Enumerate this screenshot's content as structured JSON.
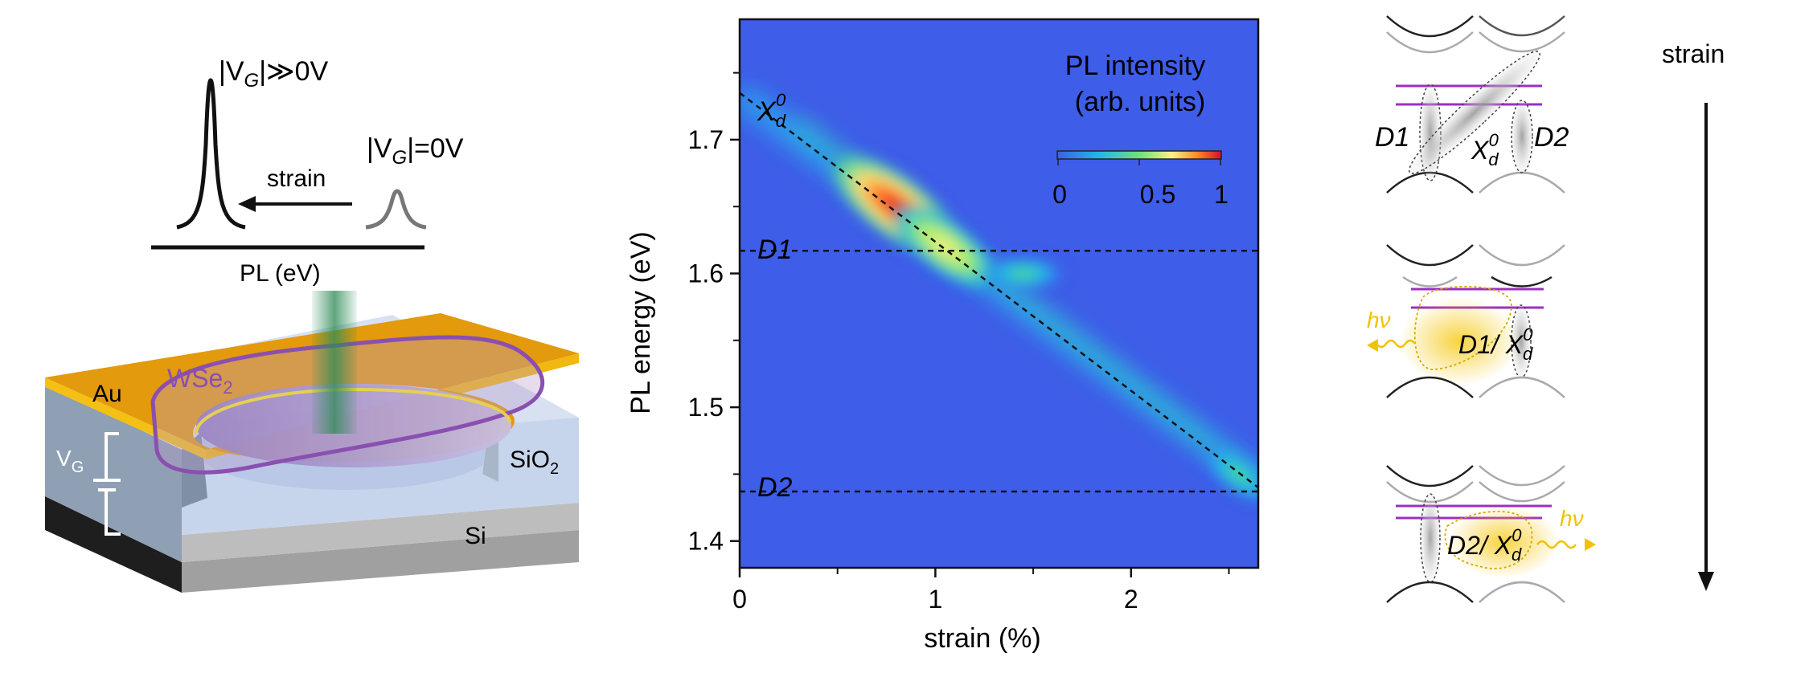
{
  "panel_left": {
    "pl_high_label": "|V",
    "pl_high_sub": "G",
    "pl_high_rest": "|≫0V",
    "pl_low_label": "|V",
    "pl_low_sub": "G",
    "pl_low_rest": "|=0V",
    "arrow_label": "strain",
    "axis_label": "PL (eV)",
    "au_label": "Au",
    "wse2_label": "WSe",
    "wse2_sub": "2",
    "vg_label": "V",
    "vg_sub": "G",
    "sio2_label": "SiO",
    "sio2_sub": "2",
    "si_label": "Si"
  },
  "chart_data": {
    "type": "heatmap",
    "xlabel": "strain (%)",
    "ylabel": "PL energy (eV)",
    "xlim": [
      0,
      2.65
    ],
    "ylim": [
      1.38,
      1.79
    ],
    "xticks": [
      0,
      1,
      2
    ],
    "xtick_labels": [
      "0",
      "1",
      "2"
    ],
    "yticks": [
      1.4,
      1.5,
      1.6,
      1.7
    ],
    "ytick_labels": [
      "1.4",
      "1.5",
      "1.6",
      "1.7"
    ],
    "colorbar": {
      "title_line1": "PL intensity",
      "title_line2": "(arb. units)",
      "ticks": [
        "0",
        "0.5",
        "1"
      ],
      "range": [
        0,
        1
      ]
    },
    "lines": [
      {
        "name": "X_d^0",
        "label": "X",
        "label_sub": "d",
        "label_sup": "0",
        "points": [
          [
            0,
            1.735
          ],
          [
            2.65,
            1.44
          ]
        ]
      },
      {
        "name": "D1",
        "label": "D1",
        "points": [
          [
            0,
            1.617
          ],
          [
            2.65,
            1.617
          ]
        ]
      },
      {
        "name": "D2",
        "label": "D2",
        "points": [
          [
            0,
            1.437
          ],
          [
            2.65,
            1.437
          ]
        ]
      }
    ],
    "intensity_spots": [
      {
        "strain": 0.8,
        "energy": 1.65,
        "intensity": 1.0
      },
      {
        "strain": 1.05,
        "energy": 1.62,
        "intensity": 0.6
      },
      {
        "strain": 1.45,
        "energy": 1.6,
        "intensity": 0.25
      },
      {
        "strain": 2.55,
        "energy": 1.45,
        "intensity": 0.3
      }
    ]
  },
  "panel_right": {
    "strain_label": "strain",
    "d1": "D1",
    "d2": "D2",
    "x": "X",
    "x_sub": "d",
    "x_sup": "0",
    "hv": "hν",
    "mid_label": "D1/ X",
    "bot_label": "D2/ X"
  },
  "colors": {
    "au": "#e69b0b",
    "wse2": "#8a4fb0",
    "sio2": "#c5d4ec",
    "si": "#b5b5b5",
    "beam": "#2e8b57",
    "emission": "#f2c200",
    "level": "#9b30c0",
    "heatmap_bg": "#3e5de8"
  }
}
